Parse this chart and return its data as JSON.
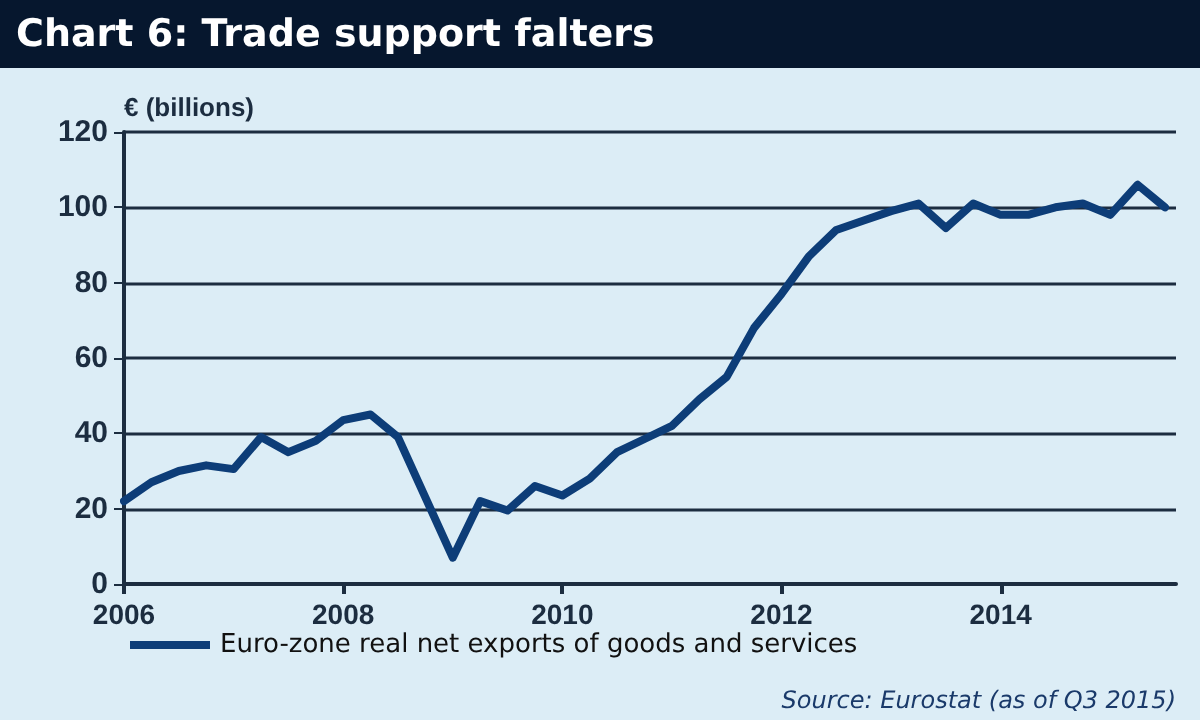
{
  "chart_data": {
    "type": "line",
    "title": "Chart 6: Trade support falters",
    "ylabel": "€ (billions)",
    "x": [
      2006,
      2006.25,
      2006.5,
      2006.75,
      2007,
      2007.25,
      2007.5,
      2007.75,
      2008,
      2008.25,
      2008.5,
      2008.75,
      2009,
      2009.25,
      2009.5,
      2009.75,
      2010,
      2010.25,
      2010.5,
      2010.75,
      2011,
      2011.25,
      2011.5,
      2011.75,
      2012,
      2012.25,
      2012.5,
      2012.75,
      2013,
      2013.25,
      2013.5,
      2013.75,
      2014,
      2014.25,
      2014.5,
      2014.75,
      2015,
      2015.25,
      2015.5
    ],
    "series": [
      {
        "name": "Euro-zone real net exports of goods and services",
        "color": "#0d3d78",
        "values": [
          22,
          27,
          30,
          31.5,
          30.5,
          39,
          35,
          38,
          43.5,
          45,
          39,
          23,
          7,
          22,
          19.5,
          26,
          23.5,
          28,
          35,
          38.5,
          42,
          49,
          55,
          68,
          77,
          87,
          94,
          96.5,
          99,
          101,
          94.5,
          101,
          98,
          98,
          100,
          101,
          98,
          106,
          100
        ]
      }
    ],
    "xlim": [
      2006,
      2015.6
    ],
    "xticks": [
      2006,
      2008,
      2010,
      2012,
      2014
    ],
    "ylim": [
      0,
      120
    ],
    "yticks": [
      0,
      20,
      40,
      60,
      80,
      100,
      120
    ],
    "grid": "y",
    "legend": "bottom",
    "marker": "none",
    "line_style": "solid",
    "annotations": [
      "Source: Eurostat (as of Q3 2015)"
    ]
  }
}
